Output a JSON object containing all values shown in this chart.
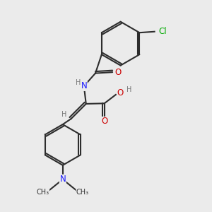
{
  "background_color": "#ebebeb",
  "bond_color": "#2d2d2d",
  "bond_width": 1.5,
  "atom_colors": {
    "C": "#2d2d2d",
    "N": "#1a1aff",
    "O": "#cc0000",
    "Cl": "#00aa00",
    "H": "#777777"
  },
  "font_size": 8.5,
  "small_font_size": 7.0,
  "figsize": [
    3.0,
    3.0
  ],
  "dpi": 100
}
